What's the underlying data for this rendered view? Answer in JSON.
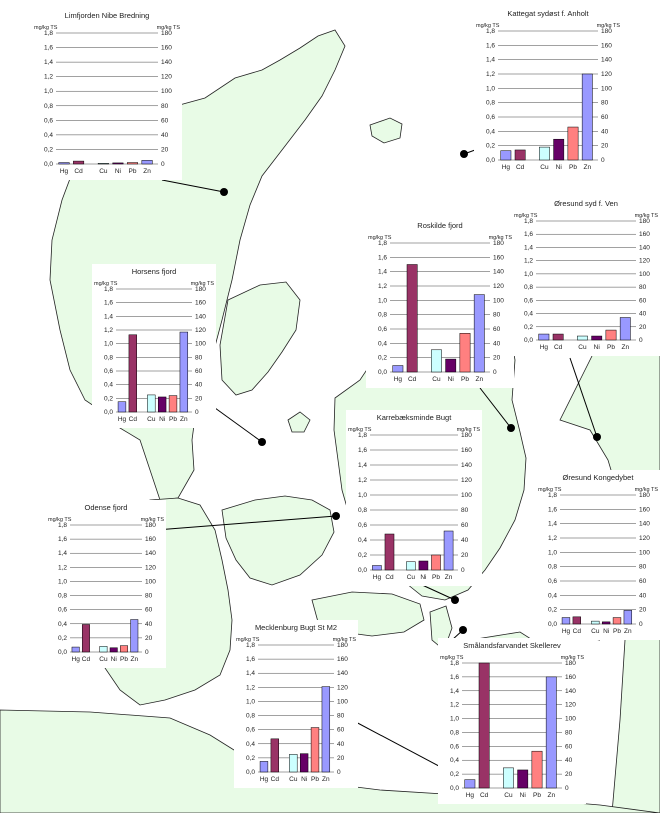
{
  "units_label": "mg/kg TS",
  "series_colors": [
    "#9999ff",
    "#993366",
    "#ccffff",
    "#660066",
    "#ff8080",
    "#9999ff"
  ],
  "map_colors": {
    "land": "#e8fbe6",
    "coast": "#222222",
    "marker": "#000000"
  },
  "chart_data": [
    {
      "type": "bar",
      "title": "Limfjorden Nibe Bredning",
      "categories": [
        "Hg",
        "Cd",
        "Cu",
        "Ni",
        "Pb",
        "Zn"
      ],
      "values": [
        0.02,
        0.04,
        0.01,
        0.015,
        0.02,
        0.05
      ],
      "ylim_left": [
        0,
        1.8
      ],
      "ylim_right": [
        0,
        180
      ],
      "yticks_left": [
        "0,0",
        "0,2",
        "0,4",
        "0,6",
        "0,8",
        "1,0",
        "1,2",
        "1,4",
        "1,6",
        "1,8"
      ],
      "yticks_right": [
        "0",
        "20",
        "40",
        "60",
        "80",
        "100",
        "120",
        "140",
        "160",
        "180"
      ]
    },
    {
      "type": "bar",
      "title": "Kattegat sydøst f.  Anholt",
      "categories": [
        "Hg",
        "Cd",
        "Cu",
        "Ni",
        "Pb",
        "Zn"
      ],
      "values": [
        0.13,
        0.14,
        0.18,
        0.29,
        0.46,
        1.2
      ],
      "ylim_left": [
        0,
        1.8
      ],
      "ylim_right": [
        0,
        180
      ],
      "yticks_left": [
        "0,0",
        "0,2",
        "0,4",
        "0,6",
        "0,8",
        "1,0",
        "1,2",
        "1,4",
        "1,6",
        "1,8"
      ],
      "yticks_right": [
        "0",
        "20",
        "40",
        "60",
        "80",
        "100",
        "120",
        "140",
        "160",
        "180"
      ]
    },
    {
      "type": "bar",
      "title": "Øresund syd f. Ven",
      "categories": [
        "Hg",
        "Cd",
        "Cu",
        "Ni",
        "Pb",
        "Zn"
      ],
      "values": [
        0.09,
        0.09,
        0.06,
        0.06,
        0.15,
        0.34
      ],
      "ylim_left": [
        0,
        1.8
      ],
      "ylim_right": [
        0,
        180
      ],
      "yticks_left": [
        "0,0",
        "0,2",
        "0,4",
        "0,6",
        "0,8",
        "1,0",
        "1,2",
        "1,4",
        "1,6",
        "1,8"
      ],
      "yticks_right": [
        "0",
        "20",
        "40",
        "60",
        "80",
        "100",
        "120",
        "140",
        "160",
        "180"
      ]
    },
    {
      "type": "bar",
      "title": "Roskilde fjord",
      "categories": [
        "Hg",
        "Cd",
        "Cu",
        "Ni",
        "Pb",
        "Zn"
      ],
      "values": [
        0.09,
        1.5,
        0.31,
        0.18,
        0.54,
        1.08
      ],
      "ylim_left": [
        0,
        1.8
      ],
      "ylim_right": [
        0,
        180
      ],
      "yticks_left": [
        "0,0",
        "0,2",
        "0,4",
        "0,6",
        "0,8",
        "1,0",
        "1,2",
        "1,4",
        "1,6",
        "1,8"
      ],
      "yticks_right": [
        "0",
        "20",
        "40",
        "60",
        "80",
        "100",
        "120",
        "140",
        "160",
        "180"
      ]
    },
    {
      "type": "bar",
      "title": "Horsens fjord",
      "categories": [
        "Hg",
        "Cd",
        "Cu",
        "Ni",
        "Pb",
        "Zn"
      ],
      "values": [
        0.15,
        1.13,
        0.25,
        0.22,
        0.24,
        1.17
      ],
      "ylim_left": [
        0,
        1.8
      ],
      "ylim_right": [
        0,
        180
      ],
      "yticks_left": [
        "0,0",
        "0,2",
        "0,4",
        "0,6",
        "0,8",
        "1,0",
        "1,2",
        "1,4",
        "1,6",
        "1,8"
      ],
      "yticks_right": [
        "0",
        "20",
        "40",
        "60",
        "80",
        "100",
        "120",
        "140",
        "160",
        "180"
      ]
    },
    {
      "type": "bar",
      "title": "Karrebæksminde Bugt",
      "categories": [
        "Hg",
        "Cd",
        "Cu",
        "Ni",
        "Pb",
        "Zn"
      ],
      "values": [
        0.06,
        0.48,
        0.11,
        0.12,
        0.2,
        0.52
      ],
      "ylim_left": [
        0,
        1.8
      ],
      "ylim_right": [
        0,
        180
      ],
      "yticks_left": [
        "0,0",
        "0,2",
        "0,4",
        "0,6",
        "0,8",
        "1,0",
        "1,2",
        "1,4",
        "1,6",
        "1,8"
      ],
      "yticks_right": [
        "0",
        "20",
        "40",
        "60",
        "80",
        "100",
        "120",
        "140",
        "160",
        "180"
      ]
    },
    {
      "type": "bar",
      "title": "Øresund Kongedybet",
      "categories": [
        "Hg",
        "Cd",
        "Cu",
        "Ni",
        "Pb",
        "Zn"
      ],
      "values": [
        0.09,
        0.1,
        0.04,
        0.03,
        0.09,
        0.19
      ],
      "ylim_left": [
        0,
        1.8
      ],
      "ylim_right": [
        0,
        180
      ],
      "yticks_left": [
        "0,0",
        "0,2",
        "0,4",
        "0,6",
        "0,8",
        "1,0",
        "1,2",
        "1,4",
        "1,6",
        "1,8"
      ],
      "yticks_right": [
        "0",
        "20",
        "40",
        "60",
        "80",
        "100",
        "120",
        "140",
        "160",
        "180"
      ]
    },
    {
      "type": "bar",
      "title": "Odense fjord",
      "categories": [
        "Hg",
        "Cd",
        "Cu",
        "Ni",
        "Pb",
        "Zn"
      ],
      "values": [
        0.07,
        0.39,
        0.08,
        0.06,
        0.09,
        0.46
      ],
      "ylim_left": [
        0,
        1.8
      ],
      "ylim_right": [
        0,
        180
      ],
      "yticks_left": [
        "0,0",
        "0,2",
        "0,4",
        "0,6",
        "0,8",
        "1,0",
        "1,2",
        "1,4",
        "1,6",
        "1,8"
      ],
      "yticks_right": [
        "0",
        "20",
        "40",
        "60",
        "80",
        "100",
        "120",
        "140",
        "160",
        "180"
      ]
    },
    {
      "type": "bar",
      "title": "Mecklenburg Bugt St M2",
      "categories": [
        "Hg",
        "Cd",
        "Cu",
        "Ni",
        "Pb",
        "Zn"
      ],
      "values": [
        0.15,
        0.47,
        0.25,
        0.26,
        0.63,
        1.21
      ],
      "ylim_left": [
        0,
        1.8
      ],
      "ylim_right": [
        0,
        180
      ],
      "yticks_left": [
        "0,0",
        "0,2",
        "0,4",
        "0,6",
        "0,8",
        "1,0",
        "1,2",
        "1,4",
        "1,6",
        "1,8"
      ],
      "yticks_right": [
        "0",
        "20",
        "40",
        "60",
        "80",
        "100",
        "120",
        "140",
        "160",
        "180"
      ]
    },
    {
      "type": "bar",
      "title": "Smålandsfarvandet Skellerev",
      "categories": [
        "Hg",
        "Cd",
        "Cu",
        "Ni",
        "Pb",
        "Zn"
      ],
      "values": [
        0.12,
        1.8,
        0.29,
        0.26,
        0.53,
        1.6
      ],
      "ylim_left": [
        0,
        1.8
      ],
      "ylim_right": [
        0,
        180
      ],
      "yticks_left": [
        "0,0",
        "0,2",
        "0,4",
        "0,6",
        "0,8",
        "1,0",
        "1,2",
        "1,4",
        "1,6",
        "1,8"
      ],
      "yticks_right": [
        "0",
        "20",
        "40",
        "60",
        "80",
        "100",
        "120",
        "140",
        "160",
        "180"
      ]
    }
  ]
}
